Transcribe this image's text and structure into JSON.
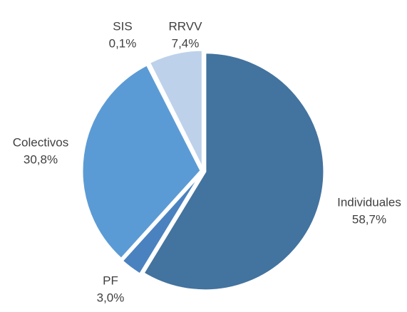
{
  "chart_data": {
    "type": "pie",
    "categories": [
      "Individuales",
      "PF",
      "Colectivos",
      "SIS",
      "RRVV"
    ],
    "values": [
      58.7,
      3.0,
      30.8,
      0.1,
      7.4
    ],
    "value_labels": [
      "58,7%",
      "3,0%",
      "30,8%",
      "0,1%",
      "7,4%"
    ],
    "colors": [
      "#43739f",
      "#4a82c0",
      "#5b9bd5",
      "#9fbfe3",
      "#bdd1ea"
    ]
  }
}
